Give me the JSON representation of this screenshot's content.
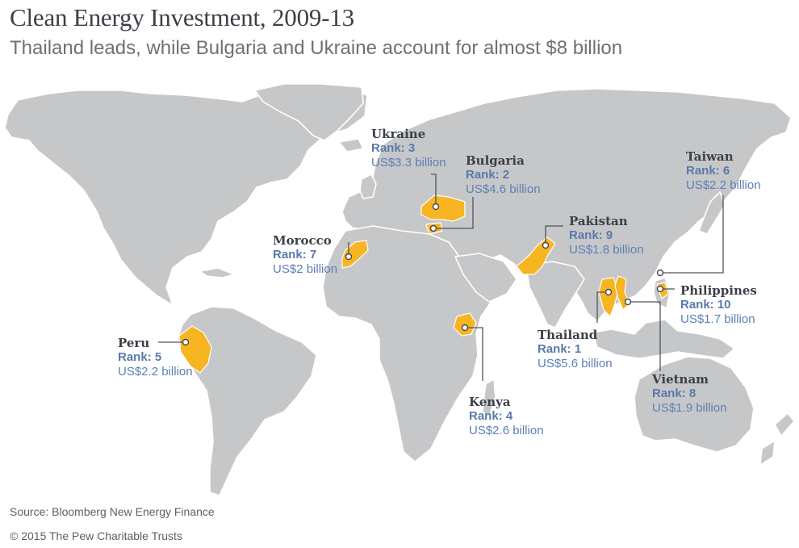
{
  "title": "Clean Energy Investment, 2009-13",
  "subtitle": "Thailand leads, while Bulgaria and Ukraine account for almost $8 billion",
  "source": "Source: Bloomberg New Energy Finance",
  "copyright": "© 2015 The Pew Charitable Trusts",
  "colors": {
    "land": "#c6c7c9",
    "highlight": "#f6b521",
    "name": "#3b3f48",
    "rank": "#5a79aa",
    "amount": "#5d7fb5"
  },
  "countries": {
    "ukraine": {
      "name": "Ukraine",
      "rank": "Rank: 3",
      "amount": "US$3.3 billion"
    },
    "bulgaria": {
      "name": "Bulgaria",
      "rank": "Rank: 2",
      "amount": "US$4.6 billion"
    },
    "taiwan": {
      "name": "Taiwan",
      "rank": "Rank: 6",
      "amount": "US$2.2 billion"
    },
    "pakistan": {
      "name": "Pakistan",
      "rank": "Rank: 9",
      "amount": "US$1.8 billion"
    },
    "morocco": {
      "name": "Morocco",
      "rank": "Rank: 7",
      "amount": "US$2 billion"
    },
    "philippines": {
      "name": "Philippines",
      "rank": "Rank: 10",
      "amount": "US$1.7 billion"
    },
    "peru": {
      "name": "Peru",
      "rank": "Rank: 5",
      "amount": "US$2.2 billion"
    },
    "thailand": {
      "name": "Thailand",
      "rank": "Rank: 1",
      "amount": "US$5.6 billion"
    },
    "vietnam": {
      "name": "Vietnam",
      "rank": "Rank: 8",
      "amount": "US$1.9 billion"
    },
    "kenya": {
      "name": "Kenya",
      "rank": "Rank: 4",
      "amount": "US$2.6 billion"
    }
  }
}
